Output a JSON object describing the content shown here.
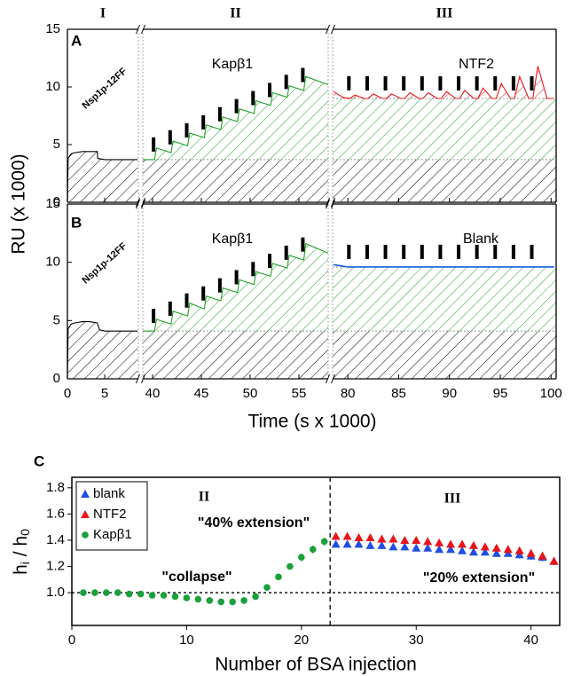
{
  "chart_data": [
    {
      "type": "line",
      "x_label": "Time (s x 1000)",
      "y_label": "RU (x 1000)",
      "ylim": [
        0,
        15
      ],
      "yticks": [
        0,
        5,
        10,
        15
      ],
      "segments": [
        {
          "label": "I",
          "xlim": [
            0,
            9.5
          ],
          "xticks": [
            0,
            5
          ]
        },
        {
          "label": "II",
          "xlim": [
            39,
            58
          ],
          "xticks": [
            40,
            45,
            50,
            55
          ]
        },
        {
          "label": "III",
          "xlim": [
            78.5,
            100.5
          ],
          "xticks": [
            80,
            85,
            90,
            95,
            100
          ]
        }
      ],
      "panels": [
        {
          "label": "A",
          "series": [
            {
              "name": "Nsp1p-12FF",
              "color": "#000000",
              "x": [
                0,
                0.1,
                0.5,
                1,
                2,
                3,
                4,
                4.05,
                5,
                9.4
              ],
              "values": [
                0,
                3.8,
                4.2,
                4.3,
                4.4,
                4.4,
                4.4,
                3.8,
                3.7,
                3.7
              ]
            },
            {
              "name": "Kapβ1",
              "color": "#22a02a",
              "plateau": 9.0,
              "x": [
                39.0,
                40.2,
                40.4,
                41.9,
                42.1,
                43.6,
                43.8,
                45.3,
                45.5,
                47.0,
                47.2,
                48.7,
                48.9,
                50.4,
                50.6,
                52.1,
                52.3,
                53.8,
                54.0,
                55.5,
                55.7,
                58.0
              ],
              "values": [
                3.7,
                3.7,
                4.7,
                4.3,
                5.3,
                4.9,
                6.0,
                5.6,
                6.7,
                6.3,
                7.4,
                7.0,
                8.1,
                7.7,
                8.8,
                8.4,
                9.5,
                9.1,
                10.1,
                9.7,
                10.9,
                10.2
              ],
              "injections": [
                40.1,
                41.8,
                43.5,
                45.2,
                46.9,
                48.6,
                50.3,
                52.0,
                53.7,
                55.4
              ]
            },
            {
              "name": "NTF2",
              "color": "#e8141a",
              "hatch": true,
              "x": [
                78.6,
                79.5,
                80.2,
                80.7,
                81.6,
                82.0,
                82.5,
                83.4,
                83.8,
                84.3,
                85.2,
                85.6,
                86.1,
                87.0,
                87.4,
                87.9,
                88.8,
                89.2,
                89.7,
                90.6,
                91.0,
                91.5,
                92.4,
                92.8,
                93.3,
                94.2,
                94.6,
                95.1,
                96.0,
                96.4,
                96.9,
                97.8,
                98.2,
                98.7,
                99.6,
                100.3
              ],
              "values": [
                9.6,
                9.1,
                9.0,
                9.3,
                9.0,
                9.0,
                9.4,
                9.0,
                9.0,
                9.4,
                9.0,
                9.0,
                9.5,
                9.0,
                9.0,
                9.5,
                9.0,
                9.0,
                9.6,
                9.0,
                9.0,
                9.7,
                9.0,
                9.0,
                9.9,
                9.0,
                9.0,
                10.3,
                9.0,
                9.0,
                10.9,
                9.0,
                9.0,
                11.8,
                9.0,
                9.0
              ],
              "injections": [
                80.1,
                81.9,
                83.7,
                85.5,
                87.3,
                89.1,
                90.9,
                92.7,
                94.5,
                96.3,
                98.1
              ]
            }
          ]
        },
        {
          "label": "B",
          "series": [
            {
              "name": "Nsp1p-12FF",
              "color": "#000000",
              "x": [
                0,
                0.1,
                0.5,
                1,
                2,
                3,
                4,
                4.3,
                5,
                9.4
              ],
              "values": [
                0,
                4.3,
                4.7,
                4.8,
                4.9,
                4.9,
                4.8,
                4.2,
                4.1,
                4.1
              ]
            },
            {
              "name": "Kapβ1",
              "color": "#22a02a",
              "plateau": 9.6,
              "x": [
                39.0,
                40.2,
                40.4,
                41.9,
                42.1,
                43.6,
                43.8,
                45.3,
                45.5,
                47.0,
                47.2,
                48.7,
                48.9,
                50.4,
                50.6,
                52.1,
                52.3,
                53.8,
                54.0,
                55.5,
                55.7,
                58.0
              ],
              "values": [
                4.1,
                4.1,
                5.1,
                4.7,
                5.8,
                5.4,
                6.5,
                6.0,
                7.1,
                6.7,
                7.8,
                7.4,
                8.5,
                8.1,
                9.2,
                8.8,
                9.9,
                9.5,
                10.6,
                10.2,
                11.6,
                10.8
              ],
              "injections": [
                40.1,
                41.8,
                43.5,
                45.2,
                46.9,
                48.6,
                50.3,
                52.0,
                53.7,
                55.4
              ]
            },
            {
              "name": "Blank",
              "color": "#1560e0",
              "hatch": false,
              "x": [
                78.6,
                80.0,
                100.3
              ],
              "values": [
                9.8,
                9.6,
                9.6
              ],
              "injections": [
                80.1,
                81.9,
                83.7,
                85.5,
                87.3,
                89.1,
                90.9,
                92.7,
                94.5,
                96.3,
                98.1
              ]
            }
          ]
        }
      ]
    },
    {
      "type": "scatter",
      "panel_label": "C",
      "x_label": "Number of BSA injection",
      "y_label": [
        "h",
        "i",
        " / h",
        "0"
      ],
      "xlim": [
        0,
        42.5
      ],
      "xticks": [
        0,
        10,
        20,
        30,
        40
      ],
      "ylim": [
        0.75,
        1.88
      ],
      "yticks": [
        {
          "value": 1,
          "label": "1.0"
        },
        1.2,
        1.4,
        1.6,
        1.8
      ],
      "vline": 22.5,
      "hline": 1,
      "legend": "upper left",
      "annotations": [
        "II",
        "III",
        "\"40% extension\"",
        "\"collapse\"",
        "\"20% extension\""
      ],
      "series": [
        {
          "name": "blank",
          "color": "#1f4fe0",
          "marker": "triangle",
          "x": [
            23,
            24,
            25,
            26,
            27,
            28,
            29,
            30,
            31,
            32,
            33,
            34,
            35,
            36,
            37,
            38,
            39,
            40,
            41,
            42
          ],
          "values": [
            1.37,
            1.37,
            1.37,
            1.36,
            1.36,
            1.35,
            1.35,
            1.34,
            1.34,
            1.33,
            1.33,
            1.32,
            1.31,
            1.31,
            1.3,
            1.3,
            1.29,
            1.28,
            1.27,
            1.24
          ],
          "errors": [
            0.02,
            0.02,
            0.02,
            0.02,
            0.02,
            0.02,
            0.02,
            0.02,
            0.02,
            0.02,
            0.02,
            0.02,
            0.02,
            0.02,
            0.02,
            0.02,
            0.03,
            0.03,
            0.03,
            0.03
          ]
        },
        {
          "name": "NTF2",
          "color": "#e8141a",
          "marker": "triangle",
          "x": [
            23,
            24,
            25,
            26,
            27,
            28,
            29,
            30,
            31,
            32,
            33,
            34,
            35,
            36,
            37,
            38,
            39,
            40,
            41,
            42
          ],
          "values": [
            1.43,
            1.43,
            1.42,
            1.42,
            1.41,
            1.41,
            1.4,
            1.4,
            1.39,
            1.38,
            1.37,
            1.37,
            1.36,
            1.35,
            1.34,
            1.33,
            1.32,
            1.3,
            1.28,
            1.24
          ],
          "errors": [
            0.02,
            0.02,
            0.02,
            0.02,
            0.02,
            0.02,
            0.02,
            0.02,
            0.02,
            0.02,
            0.02,
            0.02,
            0.02,
            0.02,
            0.02,
            0.02,
            0.03,
            0.03,
            0.03,
            0.03
          ]
        },
        {
          "name": "Kapβ1",
          "color": "#1aa03c",
          "marker": "circle",
          "x": [
            1,
            2,
            3,
            4,
            5,
            6,
            7,
            8,
            9,
            10,
            11,
            12,
            13,
            14,
            15,
            16,
            17,
            18,
            19,
            20,
            21,
            22
          ],
          "values": [
            1.0,
            1.0,
            1.0,
            1.0,
            0.99,
            0.99,
            0.98,
            0.98,
            0.97,
            0.96,
            0.95,
            0.94,
            0.93,
            0.93,
            0.94,
            0.97,
            1.04,
            1.12,
            1.2,
            1.27,
            1.33,
            1.39
          ],
          "errors": [
            0.02,
            0.01,
            0.01,
            0.01,
            0.01,
            0.01,
            0.02,
            0.01,
            0.01,
            0.01,
            0.01,
            0.01,
            0.01,
            0.01,
            0.01,
            0.02,
            0.02,
            0.02,
            0.02,
            0.03,
            0.03,
            0.03
          ]
        }
      ]
    }
  ]
}
